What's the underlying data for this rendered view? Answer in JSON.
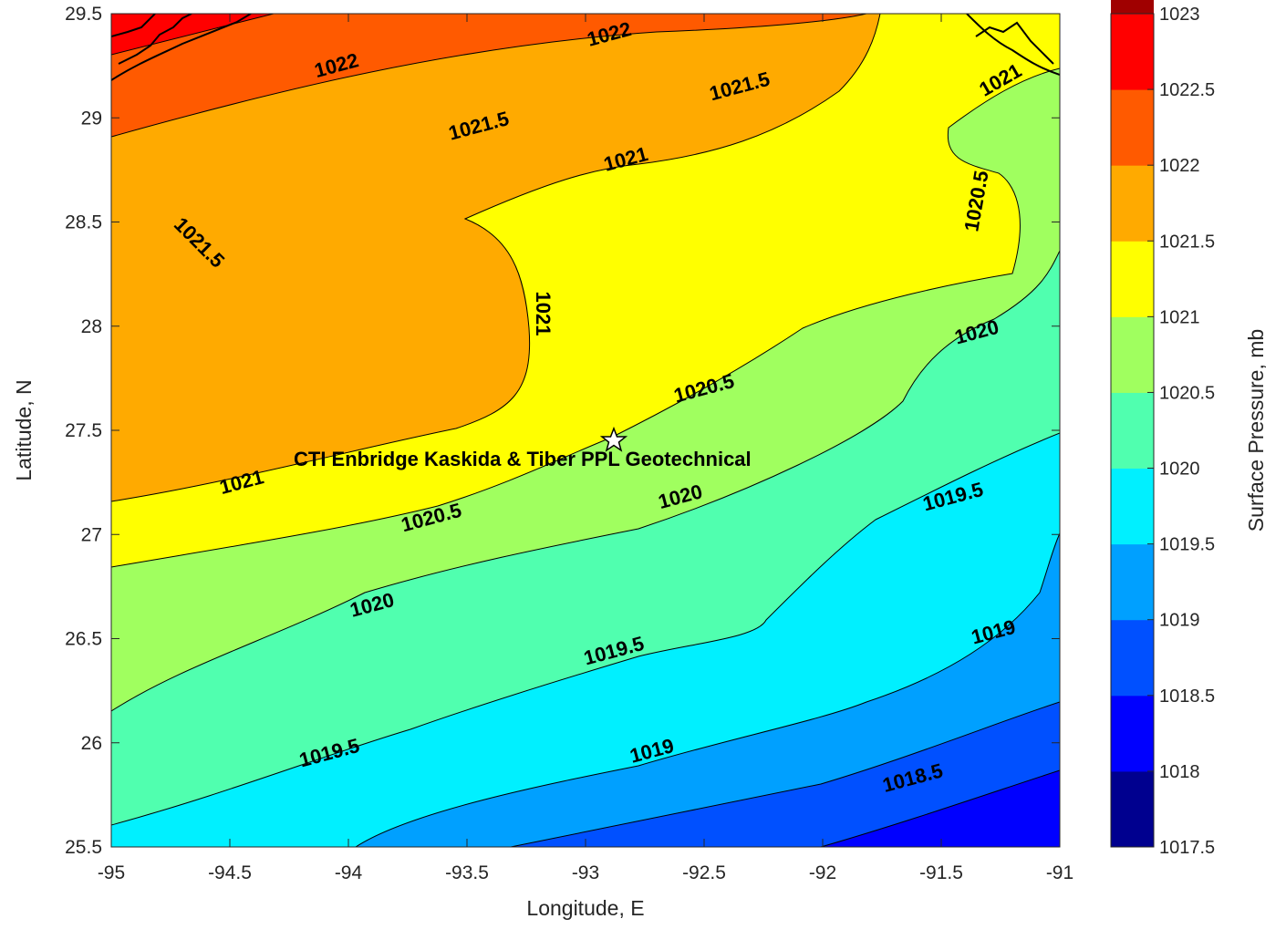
{
  "chart_data": {
    "type": "filled-contour",
    "title": "",
    "xlabel": "Longitude, E",
    "ylabel": "Latitude, N",
    "xlim": [
      -95,
      -91
    ],
    "ylim": [
      25.5,
      29.5
    ],
    "xticks": [
      "-95",
      "-94.5",
      "-94",
      "-93.5",
      "-93",
      "-92.5",
      "-92",
      "-91.5",
      "-91"
    ],
    "yticks": [
      "25.5",
      "26",
      "26.5",
      "27",
      "27.5",
      "28",
      "28.5",
      "29",
      "29.5"
    ],
    "colorbar": {
      "label": "Surface Pressure, mb",
      "ticks": [
        "1017.5",
        "1018",
        "1018.5",
        "1019",
        "1019.5",
        "1020",
        "1020.5",
        "1021",
        "1021.5",
        "1022",
        "1022.5",
        "1023"
      ],
      "colors": [
        "#00008f",
        "#0000ff",
        "#0050ff",
        "#00a0ff",
        "#00f0ff",
        "#50ffaf",
        "#a0ff5f",
        "#ffff00",
        "#ffaa00",
        "#ff5a00",
        "#ff0000",
        "#a00000"
      ]
    },
    "contour_levels": [
      1018.5,
      1019,
      1019.5,
      1020,
      1020.5,
      1021,
      1021.5,
      1022
    ],
    "contour_labels": [
      {
        "text": "1022",
        "lon": -94.05,
        "lat": 29.25
      },
      {
        "text": "1022",
        "lon": -92.9,
        "lat": 29.4
      },
      {
        "text": "1021.5",
        "lon": -93.45,
        "lat": 28.96
      },
      {
        "text": "1021.5",
        "lon": -92.35,
        "lat": 29.15
      },
      {
        "text": "1021.5",
        "lon": -94.63,
        "lat": 28.4
      },
      {
        "text": "1021",
        "lon": -92.83,
        "lat": 28.8
      },
      {
        "text": "1021",
        "lon": -93.18,
        "lat": 28.06
      },
      {
        "text": "1021",
        "lon": -91.25,
        "lat": 29.18
      },
      {
        "text": "1021",
        "lon": -94.45,
        "lat": 27.25
      },
      {
        "text": "1020.5",
        "lon": -91.35,
        "lat": 28.6
      },
      {
        "text": "1020.5",
        "lon": -92.5,
        "lat": 27.7
      },
      {
        "text": "1020.5",
        "lon": -93.65,
        "lat": 27.08
      },
      {
        "text": "1020",
        "lon": -91.35,
        "lat": 27.97
      },
      {
        "text": "1020",
        "lon": -92.6,
        "lat": 27.18
      },
      {
        "text": "1020",
        "lon": -93.9,
        "lat": 26.66
      },
      {
        "text": "1019.5",
        "lon": -91.45,
        "lat": 27.18
      },
      {
        "text": "1019.5",
        "lon": -92.88,
        "lat": 26.44
      },
      {
        "text": "1019.5",
        "lon": -94.08,
        "lat": 25.95
      },
      {
        "text": "1019",
        "lon": -91.28,
        "lat": 26.53
      },
      {
        "text": "1019",
        "lon": -92.72,
        "lat": 25.96
      },
      {
        "text": "1018.5",
        "lon": -91.62,
        "lat": 25.83
      }
    ],
    "site": {
      "name": "CTI Enbridge  Kaskida & Tiber PPL Geotechnical",
      "lon": -92.85,
      "lat": 27.44
    },
    "colormap": "jet",
    "grid": false
  }
}
